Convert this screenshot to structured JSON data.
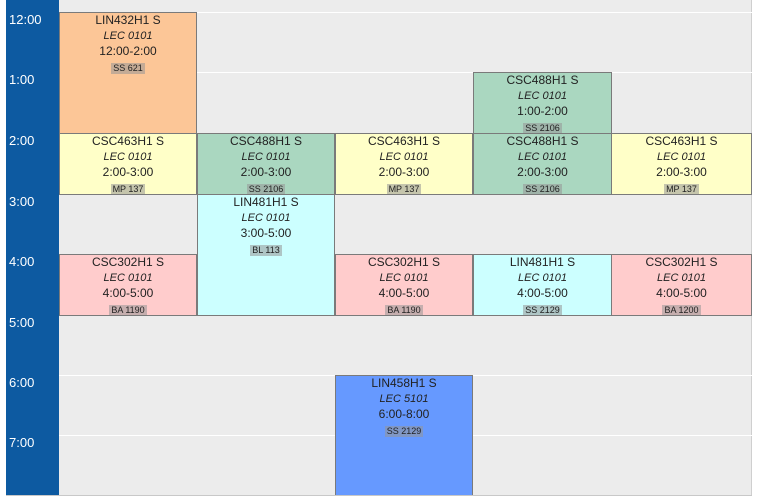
{
  "times": [
    "12:00",
    "1:00",
    "2:00",
    "3:00",
    "4:00",
    "5:00",
    "6:00",
    "7:00"
  ],
  "colors": {
    "orange": "#fcc697",
    "green": "#aad7c0",
    "yellow": "#ffffc8",
    "cyan": "#ccffff",
    "pink": "#ffcccc",
    "blue": "#6699ff"
  },
  "courses": [
    {
      "code": "LIN432H1 S",
      "section": "LEC 0101",
      "time": "12:00-2:00",
      "room": "SS 621"
    },
    {
      "code": "CSC488H1 S",
      "section": "LEC 0101",
      "time": "1:00-2:00",
      "room": "SS 2106"
    },
    {
      "code": "CSC463H1 S",
      "section": "LEC 0101",
      "time": "2:00-3:00",
      "room": "MP 137"
    },
    {
      "code": "CSC488H1 S",
      "section": "LEC 0101",
      "time": "2:00-3:00",
      "room": "SS 2106"
    },
    {
      "code": "CSC463H1 S",
      "section": "LEC 0101",
      "time": "2:00-3:00",
      "room": "MP 137"
    },
    {
      "code": "CSC488H1 S",
      "section": "LEC 0101",
      "time": "2:00-3:00",
      "room": "SS 2106"
    },
    {
      "code": "CSC463H1 S",
      "section": "LEC 0101",
      "time": "2:00-3:00",
      "room": "MP 137"
    },
    {
      "code": "LIN481H1 S",
      "section": "LEC 0101",
      "time": "3:00-5:00",
      "room": "BL 113"
    },
    {
      "code": "CSC302H1 S",
      "section": "LEC 0101",
      "time": "4:00-5:00",
      "room": "BA 1190"
    },
    {
      "code": "CSC302H1 S",
      "section": "LEC 0101",
      "time": "4:00-5:00",
      "room": "BA 1190"
    },
    {
      "code": "LIN481H1 S",
      "section": "LEC 0101",
      "time": "4:00-5:00",
      "room": "SS 2129"
    },
    {
      "code": "CSC302H1 S",
      "section": "LEC 0101",
      "time": "4:00-5:00",
      "room": "BA 1200"
    },
    {
      "code": "LIN458H1 S",
      "section": "LEC 5101",
      "time": "6:00-8:00",
      "room": "SS 2129"
    }
  ]
}
